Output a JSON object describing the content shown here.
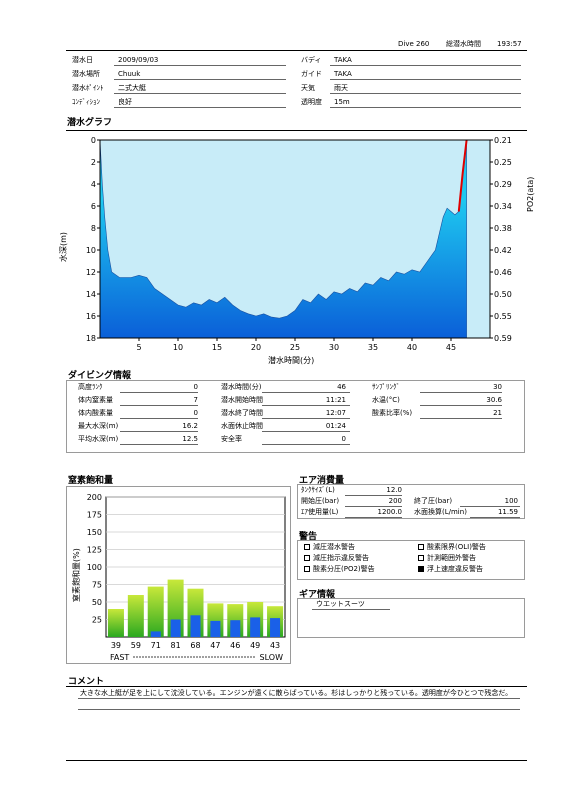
{
  "header": {
    "dive_label": "Dive 260",
    "total_label": "総潜水時間",
    "total_value": "193:57"
  },
  "info": {
    "left": [
      {
        "label": "潜水日",
        "value": "2009/09/03"
      },
      {
        "label": "潜水場所",
        "value": "Chuuk"
      },
      {
        "label": "潜水ﾎﾟｲﾝﾄ",
        "value": "二式大艇"
      },
      {
        "label": "ｺﾝﾃﾞｨｼｮﾝ",
        "value": "良好"
      }
    ],
    "right": [
      {
        "label": "バディ",
        "value": "TAKA"
      },
      {
        "label": "ガイド",
        "value": "TAKA"
      },
      {
        "label": "天気",
        "value": "雨天"
      },
      {
        "label": "透明度",
        "value": "15m"
      }
    ]
  },
  "dive_graph": {
    "heading": "潜水グラフ",
    "chart_data": {
      "type": "area",
      "xlabel": "潜水時間(分)",
      "ylabel_left": "水深(m)",
      "ylabel_right": "PO2(ata)",
      "xlim": [
        0,
        50
      ],
      "ylim_depth": [
        0,
        18
      ],
      "x_ticks": [
        5,
        10,
        15,
        20,
        25,
        30,
        35,
        40,
        45
      ],
      "depth_ticks": [
        0,
        2,
        4,
        6,
        8,
        10,
        12,
        14,
        16,
        18
      ],
      "po2_ticks": [
        "0.21",
        "0.25",
        "0.29",
        "0.34",
        "0.38",
        "0.42",
        "0.46",
        "0.50",
        "0.55",
        "0.59"
      ],
      "depth_series": [
        [
          0,
          0
        ],
        [
          0.3,
          4
        ],
        [
          0.6,
          7
        ],
        [
          1,
          10
        ],
        [
          1.5,
          12
        ],
        [
          2.5,
          12.5
        ],
        [
          4,
          12.5
        ],
        [
          5,
          12.3
        ],
        [
          6,
          12.5
        ],
        [
          7,
          13.5
        ],
        [
          8,
          14
        ],
        [
          9,
          14.5
        ],
        [
          10,
          15
        ],
        [
          11,
          15.2
        ],
        [
          12,
          14.8
        ],
        [
          13,
          15
        ],
        [
          14,
          14.5
        ],
        [
          15,
          14.8
        ],
        [
          16,
          14.3
        ],
        [
          17,
          15
        ],
        [
          18,
          15.5
        ],
        [
          19,
          15.8
        ],
        [
          20,
          16
        ],
        [
          21,
          15.8
        ],
        [
          22,
          16.1
        ],
        [
          23,
          16.2
        ],
        [
          24,
          16
        ],
        [
          25,
          15.5
        ],
        [
          26,
          14.5
        ],
        [
          27,
          14.8
        ],
        [
          28,
          14
        ],
        [
          29,
          14.5
        ],
        [
          30,
          13.8
        ],
        [
          31,
          14
        ],
        [
          32,
          13.5
        ],
        [
          33,
          13.8
        ],
        [
          34,
          13
        ],
        [
          35,
          13.2
        ],
        [
          36,
          12.5
        ],
        [
          37,
          12.8
        ],
        [
          38,
          12
        ],
        [
          39,
          12.2
        ],
        [
          40,
          11.8
        ],
        [
          41,
          12
        ],
        [
          42,
          11
        ],
        [
          43,
          10
        ],
        [
          44,
          7
        ],
        [
          44.5,
          6.2
        ],
        [
          45,
          6.5
        ],
        [
          45.5,
          6.8
        ],
        [
          46,
          6.5
        ],
        [
          46.5,
          3
        ],
        [
          47,
          0
        ]
      ],
      "ascent_warning_series": [
        [
          46,
          6.5
        ],
        [
          46.5,
          3
        ],
        [
          47,
          0
        ]
      ],
      "colors": {
        "area_top": "#1ec8f0",
        "area_bottom": "#0a5fd8",
        "background": "#c8ecf8",
        "warning": "#e00000"
      }
    }
  },
  "diving_info": {
    "heading": "ダイビング情報",
    "col1": [
      {
        "label": "高度ﾗﾝｸ",
        "value": "0"
      },
      {
        "label": "体内窒素量",
        "value": "7"
      },
      {
        "label": "体内酸素量",
        "value": "0"
      },
      {
        "label": "最大水深(m)",
        "value": "16.2"
      },
      {
        "label": "平均水深(m)",
        "value": "12.5"
      }
    ],
    "col2": [
      {
        "label": "潜水時間(分)",
        "value": "46"
      },
      {
        "label": "潜水開始時間",
        "value": "11:21"
      },
      {
        "label": "潜水終了時間",
        "value": "12:07"
      },
      {
        "label": "水面休止時間",
        "value": "01:24"
      },
      {
        "label": "安全率",
        "value": "0"
      }
    ],
    "col3": [
      {
        "label": "ｻﾝﾌﾟﾘﾝｸﾞ",
        "value": "30"
      },
      {
        "label": "水温(°C)",
        "value": "30.6"
      },
      {
        "label": "酸素比率(%)",
        "value": "21"
      }
    ]
  },
  "nitrogen": {
    "heading": "窒素飽和量",
    "chart_data": {
      "type": "bar",
      "ylabel": "窒素飽和量(%)",
      "ylim": [
        0,
        200
      ],
      "y_ticks": [
        25,
        50,
        75,
        100,
        125,
        150,
        175,
        200
      ],
      "categories": [
        "39",
        "59",
        "71",
        "81",
        "68",
        "47",
        "46",
        "49",
        "43"
      ],
      "series": [
        {
          "values": [
            40,
            60,
            72,
            82,
            69,
            48,
            47,
            50,
            44
          ],
          "color": "#8ed82e"
        },
        {
          "values": [
            0,
            0,
            8,
            25,
            31,
            23,
            24,
            28,
            27
          ],
          "color": "#1a60e8"
        }
      ],
      "footer_left": "FAST",
      "footer_right": "SLOW"
    }
  },
  "air": {
    "heading": "エア消費量",
    "tank_label": "ﾀﾝｸｻｲｽﾞ(L)",
    "tank_value": "12.0",
    "start_label": "開始圧(bar)",
    "start_value": "200",
    "end_label": "終了圧(bar)",
    "end_value": "100",
    "used_label": "ｴｱ使用量(L)",
    "used_value": "1200.0",
    "surface_label": "水面換算(L/min)",
    "surface_value": "11.59"
  },
  "warnings": {
    "heading": "警告",
    "items": [
      {
        "label": "減圧潜水警告",
        "checked": false
      },
      {
        "label": "酸素限界(OLI)警告",
        "checked": false
      },
      {
        "label": "減圧指示違反警告",
        "checked": false
      },
      {
        "label": "計測範囲外警告",
        "checked": false
      },
      {
        "label": "酸素分圧(PO2)警告",
        "checked": false
      },
      {
        "label": "浮上速度違反警告",
        "checked": true
      }
    ]
  },
  "gear": {
    "heading": "ギア情報",
    "items": [
      "ウエットスーツ"
    ]
  },
  "comment": {
    "heading": "コメント",
    "text": "大きな水上艇が足を上にして沈没している。エンジンが遠くに散らばっている。杉はしっかりと残っている。透明度が今ひとつで残念だ。"
  }
}
